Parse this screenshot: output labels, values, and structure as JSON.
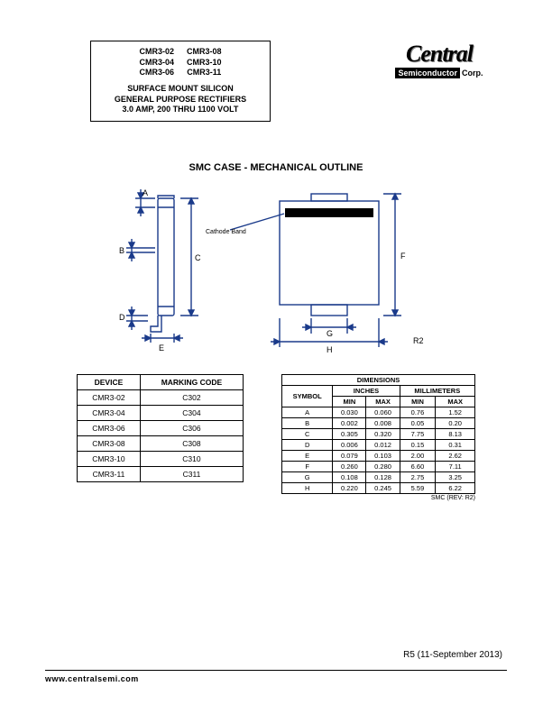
{
  "header": {
    "parts_col1": [
      "CMR3-02",
      "CMR3-04",
      "CMR3-06"
    ],
    "parts_col2": [
      "CMR3-08",
      "CMR3-10",
      "CMR3-11"
    ],
    "line1": "SURFACE MOUNT SILICON",
    "line2": "GENERAL PURPOSE RECTIFIERS",
    "line3": "3.0 AMP, 200 THRU 1100 VOLT"
  },
  "logo": {
    "main": "Central",
    "sub": "Semiconductor",
    "corp": "Corp."
  },
  "section_title": "SMC CASE - MECHANICAL OUTLINE",
  "diagram": {
    "stroke_color": "#1a3a8a",
    "dim_labels": [
      "A",
      "B",
      "C",
      "D",
      "E",
      "F",
      "G",
      "H"
    ],
    "cathode_label": "Cathode Band",
    "r2_label": "R2"
  },
  "device_table": {
    "headers": [
      "DEVICE",
      "MARKING CODE"
    ],
    "rows": [
      [
        "CMR3-02",
        "C302"
      ],
      [
        "CMR3-04",
        "C304"
      ],
      [
        "CMR3-06",
        "C306"
      ],
      [
        "CMR3-08",
        "C308"
      ],
      [
        "CMR3-10",
        "C310"
      ],
      [
        "CMR3-11",
        "C311"
      ]
    ]
  },
  "dims_table": {
    "title": "DIMENSIONS",
    "unit_headers": [
      "INCHES",
      "MILLIMETERS"
    ],
    "sub_headers": [
      "SYMBOL",
      "MIN",
      "MAX",
      "MIN",
      "MAX"
    ],
    "rows": [
      [
        "A",
        "0.030",
        "0.060",
        "0.76",
        "1.52"
      ],
      [
        "B",
        "0.002",
        "0.008",
        "0.05",
        "0.20"
      ],
      [
        "C",
        "0.305",
        "0.320",
        "7.75",
        "8.13"
      ],
      [
        "D",
        "0.006",
        "0.012",
        "0.15",
        "0.31"
      ],
      [
        "E",
        "0.079",
        "0.103",
        "2.00",
        "2.62"
      ],
      [
        "F",
        "0.260",
        "0.280",
        "6.60",
        "7.11"
      ],
      [
        "G",
        "0.108",
        "0.128",
        "2.75",
        "3.25"
      ],
      [
        "H",
        "0.220",
        "0.245",
        "5.59",
        "6.22"
      ]
    ],
    "caption": "SMC (REV: R2)"
  },
  "footer": {
    "rev": "R5 (11-September 2013)",
    "url": "www.centralsemi.com"
  }
}
